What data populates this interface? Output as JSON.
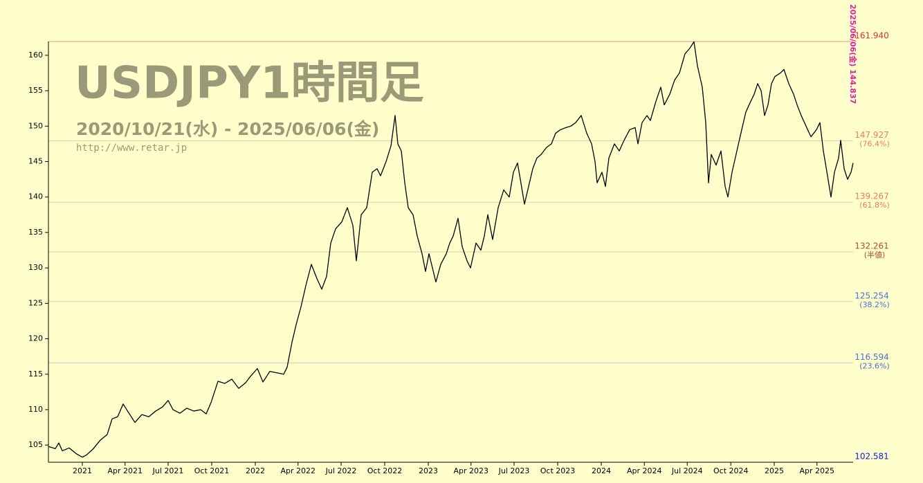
{
  "chart_data": {
    "type": "line",
    "title": "USDJPY1時間足",
    "subtitle": "2020/10/21(水) - 2025/06/06(金)",
    "source": "http://www.retar.jp",
    "annotation": "2025/06/06(金) 144.837",
    "color": "#000000",
    "xlim": [
      2020.804,
      2025.456
    ],
    "ylim": [
      102.581,
      161.94
    ],
    "yticks": [
      105,
      110,
      115,
      120,
      125,
      130,
      135,
      140,
      145,
      150,
      155,
      160
    ],
    "xticks": [
      {
        "value": 2021,
        "label": "2021"
      },
      {
        "value": 2021.247,
        "label": "Apr 2021"
      },
      {
        "value": 2021.496,
        "label": "Jul 2021"
      },
      {
        "value": 2021.748,
        "label": "Oct 2021"
      },
      {
        "value": 2022,
        "label": "2022"
      },
      {
        "value": 2022.247,
        "label": "Apr 2022"
      },
      {
        "value": 2022.496,
        "label": "Jul 2022"
      },
      {
        "value": 2022.748,
        "label": "Oct 2022"
      },
      {
        "value": 2023,
        "label": "2023"
      },
      {
        "value": 2023.247,
        "label": "Apr 2023"
      },
      {
        "value": 2023.496,
        "label": "Jul 2023"
      },
      {
        "value": 2023.748,
        "label": "Oct 2023"
      },
      {
        "value": 2024,
        "label": "2024"
      },
      {
        "value": 2024.249,
        "label": "Apr 2024"
      },
      {
        "value": 2024.497,
        "label": "Jul 2024"
      },
      {
        "value": 2024.749,
        "label": "Oct 2024"
      },
      {
        "value": 2025,
        "label": "2025"
      },
      {
        "value": 2025.247,
        "label": "Apr 2025"
      }
    ],
    "levels": [
      {
        "value": 161.94,
        "label": "161.940",
        "color": "#e03030",
        "line": "#f09080"
      },
      {
        "value": 147.927,
        "label": "147.927",
        "note": "(76.4%)",
        "color": "#f07a5a",
        "line": "#f5c8a8"
      },
      {
        "value": 139.267,
        "label": "139.267",
        "note": "(61.8%)",
        "color": "#f07a5a",
        "line": "#f5c8a8"
      },
      {
        "value": 132.261,
        "label": "132.261",
        "note": "(半値)",
        "color": "#b04a2a",
        "line": "#f0c0a0"
      },
      {
        "value": 125.254,
        "label": "125.254",
        "note": "(38.2%)",
        "color": "#4a70d8",
        "line": "#d0d0c0"
      },
      {
        "value": 116.594,
        "label": "116.594",
        "note": "(23.6%)",
        "color": "#4a70d8",
        "line": "#d0d0c0"
      },
      {
        "value": 102.581,
        "label": "102.581",
        "color": "#1020e0",
        "line": "#3040c0"
      }
    ],
    "x": [
      2020.804,
      2020.844,
      2020.864,
      2020.884,
      2020.924,
      2020.964,
      2021.0,
      2021.024,
      2021.064,
      2021.104,
      2021.144,
      2021.172,
      2021.204,
      2021.236,
      2021.264,
      2021.304,
      2021.344,
      2021.384,
      2021.424,
      2021.464,
      2021.496,
      2021.524,
      2021.564,
      2021.604,
      2021.644,
      2021.684,
      2021.716,
      2021.744,
      2021.784,
      2021.824,
      2021.864,
      2021.904,
      2021.944,
      2021.972,
      2022.012,
      2022.044,
      2022.084,
      2022.124,
      2022.164,
      2022.184,
      2022.212,
      2022.236,
      2022.264,
      2022.292,
      2022.324,
      2022.356,
      2022.384,
      2022.412,
      2022.436,
      2022.464,
      2022.5,
      2022.532,
      2022.564,
      2022.584,
      2022.612,
      2022.644,
      2022.676,
      2022.704,
      2022.724,
      2022.756,
      2022.784,
      2022.808,
      2022.824,
      2022.844,
      2022.864,
      2022.884,
      2022.912,
      2022.936,
      2022.964,
      2022.984,
      2023.004,
      2023.024,
      2023.044,
      2023.072,
      2023.104,
      2023.124,
      2023.144,
      2023.172,
      2023.196,
      2023.224,
      2023.244,
      2023.276,
      2023.304,
      2023.324,
      2023.344,
      2023.372,
      2023.404,
      2023.436,
      2023.468,
      2023.492,
      2023.516,
      2023.532,
      2023.556,
      2023.58,
      2023.604,
      2023.628,
      2023.652,
      2023.684,
      2023.712,
      2023.736,
      2023.764,
      2023.796,
      2023.824,
      2023.852,
      2023.884,
      2023.916,
      2023.944,
      2023.964,
      2023.976,
      2024.004,
      2024.024,
      2024.044,
      2024.076,
      2024.104,
      2024.132,
      2024.164,
      2024.196,
      2024.212,
      2024.236,
      2024.264,
      2024.284,
      2024.316,
      2024.344,
      2024.364,
      2024.396,
      2024.424,
      2024.452,
      2024.484,
      2024.512,
      2024.536,
      2024.556,
      2024.584,
      2024.604,
      2024.62,
      2024.636,
      2024.664,
      2024.692,
      2024.716,
      2024.732,
      2024.756,
      2024.784,
      2024.812,
      2024.836,
      2024.864,
      2024.884,
      2024.904,
      2024.924,
      2024.944,
      2024.964,
      2024.984,
      2025.004,
      2025.036,
      2025.056,
      2025.084,
      2025.112,
      2025.132,
      2025.156,
      2025.184,
      2025.212,
      2025.244,
      2025.264,
      2025.284,
      2025.308,
      2025.328,
      2025.348,
      2025.372,
      2025.384,
      2025.404,
      2025.424,
      2025.444,
      2025.456
    ],
    "values": [
      104.8,
      104.5,
      105.3,
      104.2,
      104.6,
      103.8,
      103.3,
      103.6,
      104.5,
      105.7,
      106.5,
      108.7,
      109.0,
      110.8,
      109.7,
      108.2,
      109.3,
      109.0,
      109.8,
      110.4,
      111.3,
      110.0,
      109.5,
      110.2,
      109.8,
      110.0,
      109.4,
      111.0,
      114.0,
      113.7,
      114.3,
      113.0,
      113.8,
      114.7,
      115.8,
      113.9,
      115.4,
      115.2,
      115.0,
      116.0,
      119.5,
      122.0,
      124.5,
      127.5,
      130.5,
      128.5,
      127.0,
      128.8,
      133.5,
      135.5,
      136.5,
      138.5,
      136.0,
      131.0,
      137.5,
      138.5,
      143.5,
      144.0,
      143.0,
      145.0,
      147.2,
      151.5,
      147.5,
      146.5,
      142.0,
      138.5,
      137.5,
      134.5,
      132.0,
      129.5,
      132.0,
      130.0,
      128.0,
      130.5,
      132.0,
      133.5,
      134.5,
      137.0,
      133.0,
      131.0,
      130.0,
      133.5,
      132.5,
      134.5,
      137.5,
      134.0,
      138.5,
      141.0,
      140.0,
      143.5,
      144.8,
      142.5,
      139.0,
      141.5,
      144.0,
      145.5,
      146.0,
      147.0,
      147.5,
      149.0,
      149.5,
      149.8,
      150.0,
      150.5,
      151.5,
      149.0,
      147.5,
      145.0,
      142.0,
      143.5,
      141.5,
      145.5,
      147.5,
      146.5,
      148.0,
      149.5,
      149.8,
      147.5,
      150.5,
      151.5,
      150.8,
      153.5,
      155.5,
      153.0,
      154.5,
      156.5,
      157.5,
      160.2,
      161.0,
      161.9,
      158.5,
      155.5,
      150.5,
      142.0,
      146.0,
      144.5,
      146.5,
      141.5,
      140.0,
      143.5,
      146.5,
      149.5,
      152.0,
      153.5,
      154.5,
      156.0,
      155.0,
      151.5,
      153.0,
      156.0,
      157.0,
      157.5,
      158.0,
      156.0,
      154.5,
      153.0,
      151.5,
      150.0,
      148.5,
      149.5,
      150.5,
      146.5,
      143.0,
      140.0,
      143.5,
      145.5,
      148.0,
      144.0,
      142.5,
      143.5,
      144.8
    ]
  }
}
